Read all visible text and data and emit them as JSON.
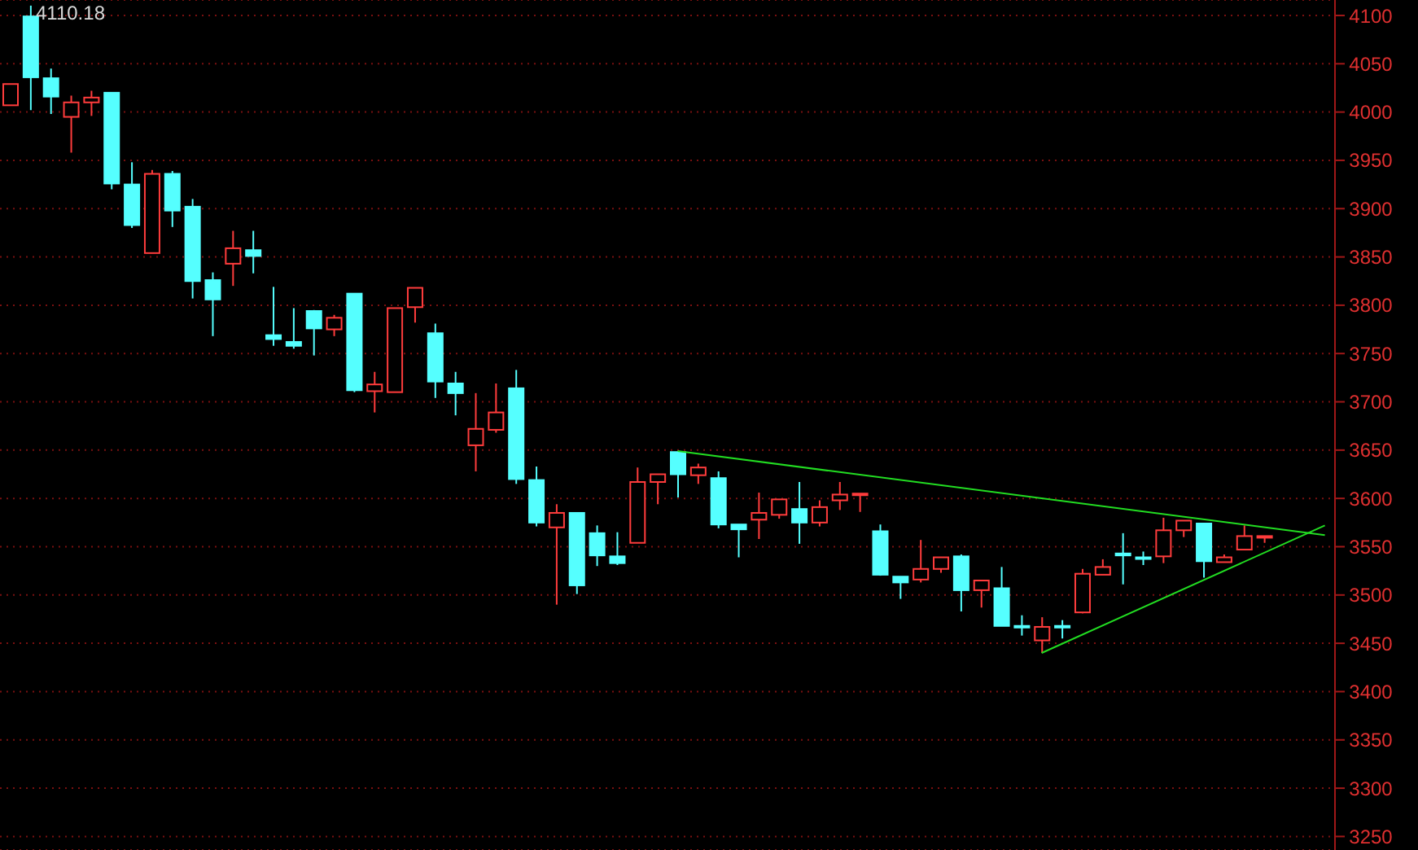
{
  "chart_data": {
    "type": "candlestick",
    "categories": [
      null,
      null,
      null,
      null,
      null,
      null,
      null,
      null,
      null,
      null,
      null,
      null,
      null,
      null,
      null,
      null,
      null,
      null,
      null,
      null,
      null,
      null,
      null,
      null,
      null,
      null,
      null,
      null,
      null,
      null,
      null,
      null,
      null,
      null,
      null,
      null,
      null,
      null,
      null,
      null,
      null,
      null,
      null,
      null,
      null,
      null,
      null,
      null,
      null,
      null,
      null,
      null,
      null,
      null,
      null,
      null,
      null,
      null,
      null,
      null,
      null,
      null,
      null,
      null,
      null,
      null
    ],
    "ohlc": [
      [
        4007,
        4029,
        4007,
        4029
      ],
      [
        4099,
        4110.18,
        4002,
        4036
      ],
      [
        4035,
        4045,
        3998,
        4016
      ],
      [
        3995,
        4017,
        3958,
        4010
      ],
      [
        4010,
        4022,
        3996,
        4015
      ],
      [
        4020,
        4020,
        3920,
        3926
      ],
      [
        3925,
        3948,
        3880,
        3883
      ],
      [
        3854,
        3940,
        3854,
        3936
      ],
      [
        3936,
        3939,
        3881,
        3898
      ],
      [
        3902,
        3910,
        3807,
        3825
      ],
      [
        3826,
        3834,
        3768,
        3806
      ],
      [
        3843,
        3877,
        3820,
        3859
      ],
      [
        3857,
        3877,
        3833,
        3851
      ],
      [
        3769,
        3819,
        3758,
        3765
      ],
      [
        3762,
        3797,
        3755,
        3758
      ],
      [
        3794,
        3795,
        3748,
        3776
      ],
      [
        3775,
        3790,
        3768,
        3787
      ],
      [
        3812,
        3812,
        3710,
        3712
      ],
      [
        3711,
        3731,
        3689,
        3718
      ],
      [
        3710,
        3797,
        3710,
        3797
      ],
      [
        3798,
        3818,
        3782,
        3818
      ],
      [
        3771,
        3781,
        3704,
        3721
      ],
      [
        3719,
        3731,
        3686,
        3709
      ],
      [
        3655,
        3709,
        3628,
        3672
      ],
      [
        3671,
        3719,
        3668,
        3689
      ],
      [
        3714,
        3733,
        3615,
        3620
      ],
      [
        3619,
        3633,
        3571,
        3575
      ],
      [
        3570,
        3594,
        3490,
        3585
      ],
      [
        3585,
        3585,
        3501,
        3510
      ],
      [
        3564,
        3572,
        3530,
        3541
      ],
      [
        3540,
        3565,
        3531,
        3533
      ],
      [
        3554,
        3632,
        3554,
        3617
      ],
      [
        3617,
        3625,
        3594,
        3625
      ],
      [
        3648,
        3649,
        3601,
        3625
      ],
      [
        3624,
        3636,
        3615,
        3632
      ],
      [
        3621,
        3628,
        3569,
        3573
      ],
      [
        3573,
        3573,
        3539,
        3568
      ],
      [
        3578,
        3606,
        3558,
        3585
      ],
      [
        3583,
        3599,
        3579,
        3599
      ],
      [
        3589,
        3617,
        3553,
        3575
      ],
      [
        3575,
        3598,
        3571,
        3591
      ],
      [
        3598,
        3617,
        3588,
        3604
      ],
      [
        3604,
        3605,
        3586,
        3605
      ],
      [
        3566,
        3573,
        3520,
        3521
      ],
      [
        3519,
        3519,
        3496,
        3513
      ],
      [
        3516,
        3557,
        3513,
        3527
      ],
      [
        3527,
        3539,
        3523,
        3539
      ],
      [
        3540,
        3542,
        3483,
        3505
      ],
      [
        3505,
        3515,
        3487,
        3515
      ],
      [
        3507,
        3529,
        3468,
        3468
      ],
      [
        3468,
        3479,
        3458,
        3467
      ],
      [
        3453,
        3477,
        3440,
        3467
      ],
      [
        3468,
        3474,
        3455,
        3467
      ],
      [
        3482,
        3527,
        3481,
        3522
      ],
      [
        3521,
        3537,
        3521,
        3529
      ],
      [
        3543,
        3564,
        3511,
        3541
      ],
      [
        3539,
        3545,
        3531,
        3538
      ],
      [
        3540,
        3580,
        3533,
        3567
      ],
      [
        3567,
        3577,
        3560,
        3577
      ],
      [
        3574,
        3574,
        3518,
        3535
      ],
      [
        3534,
        3542,
        3534,
        3539
      ],
      [
        3547,
        3572,
        3547,
        3561
      ],
      [
        3560,
        3561,
        3554,
        3561
      ],
      null,
      null,
      null
    ],
    "colors": [
      "#ff3c3c",
      "#55ffff",
      "#55ffff",
      "#ff3c3c",
      "#ff3c3c",
      "#55ffff",
      "#55ffff",
      "#ff3c3c",
      "#55ffff",
      "#55ffff",
      "#55ffff",
      "#ff3c3c",
      "#55ffff",
      "#55ffff",
      "#55ffff",
      "#55ffff",
      "#ff3c3c",
      "#55ffff",
      "#ff3c3c",
      "#ff3c3c",
      "#ff3c3c",
      "#55ffff",
      "#55ffff",
      "#ff3c3c",
      "#ff3c3c",
      "#55ffff",
      "#55ffff",
      "#ff3c3c",
      "#55ffff",
      "#55ffff",
      "#55ffff",
      "#ff3c3c",
      "#ff3c3c",
      "#55ffff",
      "#ff3c3c",
      "#55ffff",
      "#55ffff",
      "#ff3c3c",
      "#ff3c3c",
      "#55ffff",
      "#ff3c3c",
      "#ff3c3c",
      "#ff3c3c",
      "#55ffff",
      "#55ffff",
      "#ff3c3c",
      "#ff3c3c",
      "#55ffff",
      "#ff3c3c",
      "#55ffff",
      "#55ffff",
      "#ff3c3c",
      "#55ffff",
      "#ff3c3c",
      "#ff3c3c",
      "#55ffff",
      "#55ffff",
      "#ff3c3c",
      "#ff3c3c",
      "#55ffff",
      "#ff3c3c",
      "#ff3c3c",
      "#ff3c3c",
      null,
      null,
      null
    ],
    "series": [
      {
        "type": "line",
        "color": "#22dd22",
        "values": [
          null,
          null,
          null,
          null,
          null,
          null,
          null,
          null,
          null,
          null,
          null,
          null,
          null,
          null,
          null,
          null,
          null,
          null,
          null,
          null,
          null,
          null,
          null,
          null,
          null,
          null,
          null,
          null,
          null,
          null,
          null,
          null,
          null,
          3649,
          null,
          null,
          null,
          null,
          null,
          null,
          null,
          null,
          null,
          null,
          null,
          null,
          null,
          null,
          null,
          null,
          null,
          null,
          null,
          null,
          null,
          null,
          null,
          null,
          null,
          null,
          null,
          null,
          null,
          null,
          null,
          3562
        ]
      },
      {
        "type": "line",
        "color": "#22dd22",
        "values": [
          null,
          null,
          null,
          null,
          null,
          null,
          null,
          null,
          null,
          null,
          null,
          null,
          null,
          null,
          null,
          null,
          null,
          null,
          null,
          null,
          null,
          null,
          null,
          null,
          null,
          null,
          null,
          null,
          null,
          null,
          null,
          null,
          null,
          null,
          null,
          null,
          null,
          null,
          null,
          null,
          null,
          null,
          null,
          null,
          null,
          null,
          null,
          null,
          null,
          null,
          null,
          3440,
          null,
          null,
          null,
          null,
          null,
          null,
          null,
          null,
          null,
          null,
          null,
          null,
          null,
          3572
        ]
      }
    ],
    "ylim": [
      3236,
      4116
    ],
    "yticks": [
      3250,
      3300,
      3350,
      3400,
      3450,
      3500,
      3550,
      3600,
      3650,
      3700,
      3750,
      3800,
      3850,
      3900,
      3950,
      4000,
      4050,
      4100
    ],
    "grid": "y",
    "tick_labels": "y",
    "annotations": [
      "4110.18"
    ]
  }
}
